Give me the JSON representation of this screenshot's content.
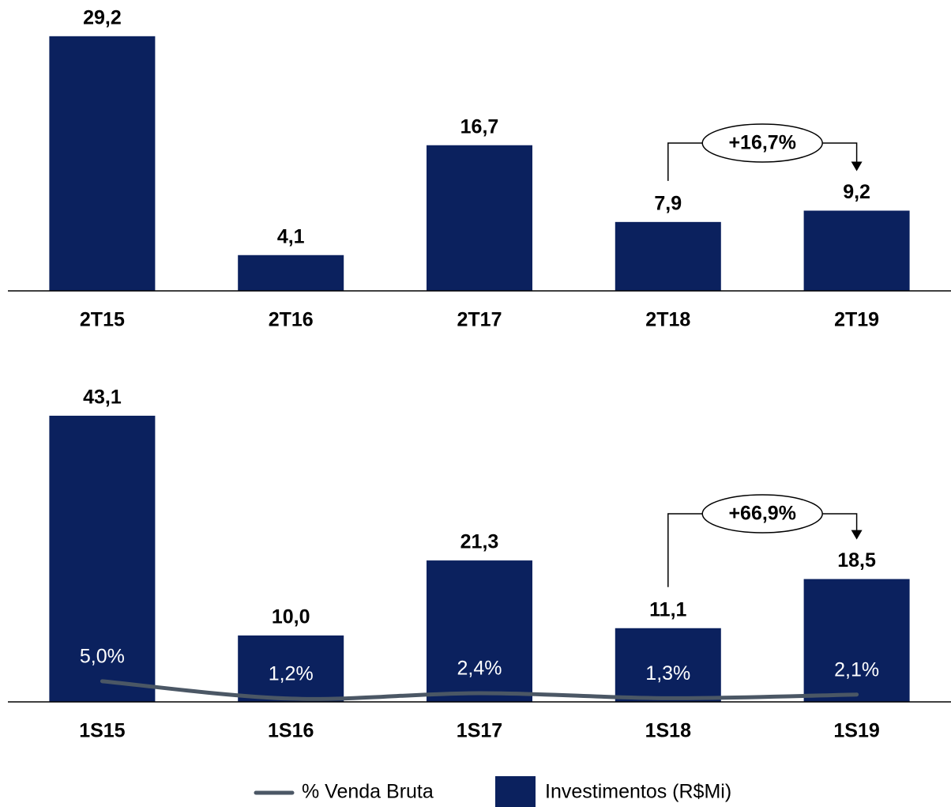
{
  "chart_data": [
    {
      "type": "bar",
      "categories": [
        "2T15",
        "2T16",
        "2T17",
        "2T18",
        "2T19"
      ],
      "values": [
        29.2,
        4.1,
        16.7,
        7.9,
        9.2
      ],
      "value_labels": [
        "29,2",
        "4,1",
        "16,7",
        "7,9",
        "9,2"
      ],
      "color": "#0b215e",
      "ylim": [
        0,
        30
      ],
      "annotation": "+16,7%"
    },
    {
      "type": "bar",
      "categories": [
        "1S15",
        "1S16",
        "1S17",
        "1S18",
        "1S19"
      ],
      "series": [
        {
          "name": "Investimentos (R$Mi)",
          "color": "#0b215e",
          "values": [
            43.1,
            10.0,
            21.3,
            11.1,
            18.5
          ],
          "value_labels": [
            "43,1",
            "10,0",
            "21,3",
            "11,1",
            "18,5"
          ]
        },
        {
          "name": "% Venda Bruta",
          "color": "#4b5765",
          "type": "line",
          "axis": "y2",
          "values": [
            5.0,
            1.2,
            2.4,
            1.3,
            2.1
          ],
          "value_labels": [
            "5,0%",
            "1,2%",
            "2,4%",
            "1,3%",
            "2,1%"
          ]
        }
      ],
      "ylim": [
        0,
        45
      ],
      "y2lim": [
        0.5,
        65.5
      ],
      "annotation": "+66,9%"
    }
  ]
}
